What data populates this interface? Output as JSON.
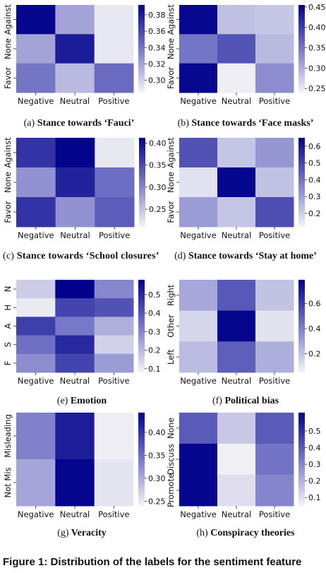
{
  "figure_caption": "Figure 1: Distribution of the labels for the sentiment feature",
  "chart_data": [
    {
      "type": "heatmap",
      "panel": "a",
      "caption_label": "(a)",
      "caption_text": "Stance towards ‘Fauci’",
      "x_labels": [
        "Negative",
        "Neutral",
        "Positive"
      ],
      "y_labels": [
        "Against",
        "None",
        "Favor"
      ],
      "values": [
        [
          0.39,
          0.32,
          0.29
        ],
        [
          0.32,
          0.38,
          0.29
        ],
        [
          0.34,
          0.31,
          0.345
        ]
      ],
      "vmin": 0.285,
      "vmax": 0.392,
      "colorbar_ticks": [
        "0.30",
        "0.32",
        "0.34",
        "0.36",
        "0.38"
      ],
      "colorbar_tick_values": [
        0.3,
        0.32,
        0.34,
        0.36,
        0.38
      ]
    },
    {
      "type": "heatmap",
      "panel": "b",
      "caption_label": "(b)",
      "caption_text": "Stance towards ‘Face masks’",
      "x_labels": [
        "Negative",
        "Neutral",
        "Positive"
      ],
      "y_labels": [
        "Against",
        "None",
        "Favor"
      ],
      "values": [
        [
          0.45,
          0.285,
          0.28
        ],
        [
          0.35,
          0.38,
          0.29
        ],
        [
          0.45,
          0.245,
          0.33
        ]
      ],
      "vmin": 0.24,
      "vmax": 0.455,
      "colorbar_ticks": [
        "0.25",
        "0.30",
        "0.35",
        "0.40",
        "0.45"
      ],
      "colorbar_tick_values": [
        0.25,
        0.3,
        0.35,
        0.4,
        0.45
      ]
    },
    {
      "type": "heatmap",
      "panel": "c",
      "caption_label": "(c)",
      "caption_text": "Stance towards ‘School closures’",
      "x_labels": [
        "Negative",
        "Neutral",
        "Positive"
      ],
      "y_labels": [
        "Against",
        "None",
        "Favor"
      ],
      "values": [
        [
          0.37,
          0.41,
          0.22
        ],
        [
          0.29,
          0.385,
          0.32
        ],
        [
          0.37,
          0.29,
          0.335
        ]
      ],
      "vmin": 0.21,
      "vmax": 0.412,
      "colorbar_ticks": [
        "0.25",
        "0.30",
        "0.35",
        "0.40"
      ],
      "colorbar_tick_values": [
        0.25,
        0.3,
        0.35,
        0.4
      ]
    },
    {
      "type": "heatmap",
      "panel": "d",
      "caption_label": "(d)",
      "caption_text": "Stance towards ‘Stay at home’",
      "x_labels": [
        "Negative",
        "Neutral",
        "Positive"
      ],
      "y_labels": [
        "Against",
        "None",
        "Favor"
      ],
      "values": [
        [
          0.47,
          0.22,
          0.32
        ],
        [
          0.16,
          0.64,
          0.23
        ],
        [
          0.31,
          0.22,
          0.48
        ]
      ],
      "vmin": 0.12,
      "vmax": 0.65,
      "colorbar_ticks": [
        "0.2",
        "0.3",
        "0.4",
        "0.5",
        "0.6"
      ],
      "colorbar_tick_values": [
        0.2,
        0.3,
        0.4,
        0.5,
        0.6
      ]
    },
    {
      "type": "heatmap",
      "panel": "e",
      "caption_label": "(e)",
      "caption_text": "Emotion",
      "x_labels": [
        "Negative",
        "Neutral",
        "Positive"
      ],
      "y_labels": [
        "N",
        "H",
        "A",
        "S",
        "F"
      ],
      "values": [
        [
          0.16,
          0.58,
          0.3
        ],
        [
          0.1,
          0.44,
          0.41
        ],
        [
          0.45,
          0.33,
          0.22
        ],
        [
          0.35,
          0.5,
          0.15
        ],
        [
          0.29,
          0.44,
          0.26
        ]
      ],
      "vmin": 0.08,
      "vmax": 0.58,
      "colorbar_ticks": [
        "0.1",
        "0.2",
        "0.3",
        "0.4",
        "0.5"
      ],
      "colorbar_tick_values": [
        0.1,
        0.2,
        0.3,
        0.4,
        0.5
      ]
    },
    {
      "type": "heatmap",
      "panel": "f",
      "caption_label": "(f)",
      "caption_text": "Political bias",
      "x_labels": [
        "Negative",
        "Neutral",
        "Positive"
      ],
      "y_labels": [
        "Right",
        "Other",
        "Left"
      ],
      "values": [
        [
          0.28,
          0.52,
          0.2
        ],
        [
          0.14,
          0.78,
          0.1
        ],
        [
          0.22,
          0.5,
          0.26
        ]
      ],
      "vmin": 0.05,
      "vmax": 0.79,
      "colorbar_ticks": [
        "0.2",
        "0.4",
        "0.6"
      ],
      "colorbar_tick_values": [
        0.2,
        0.4,
        0.6
      ]
    },
    {
      "type": "heatmap",
      "panel": "g",
      "caption_label": "(g)",
      "caption_text": "Veracity",
      "x_labels": [
        "Negative",
        "Neutral",
        "Positive"
      ],
      "y_labels": [
        "Misleading",
        "Not Mis"
      ],
      "values": [
        [
          0.335,
          0.42,
          0.245
        ],
        [
          0.305,
          0.44,
          0.252
        ]
      ],
      "vmin": 0.24,
      "vmax": 0.443,
      "colorbar_ticks": [
        "0.25",
        "0.30",
        "0.35",
        "0.40"
      ],
      "colorbar_tick_values": [
        0.25,
        0.3,
        0.35,
        0.4
      ]
    },
    {
      "type": "heatmap",
      "panel": "h",
      "caption_label": "(h)",
      "caption_text": "Conspiracy theories",
      "x_labels": [
        "Negative",
        "Neutral",
        "Positive"
      ],
      "y_labels": [
        "None",
        "Discuss",
        "Promote"
      ],
      "values": [
        [
          0.4,
          0.15,
          0.4
        ],
        [
          0.6,
          0.06,
          0.34
        ],
        [
          0.6,
          0.1,
          0.3
        ]
      ],
      "vmin": 0.05,
      "vmax": 0.61,
      "colorbar_ticks": [
        "0.1",
        "0.2",
        "0.3",
        "0.4",
        "0.5"
      ],
      "colorbar_tick_values": [
        0.1,
        0.2,
        0.3,
        0.4,
        0.5
      ]
    }
  ]
}
